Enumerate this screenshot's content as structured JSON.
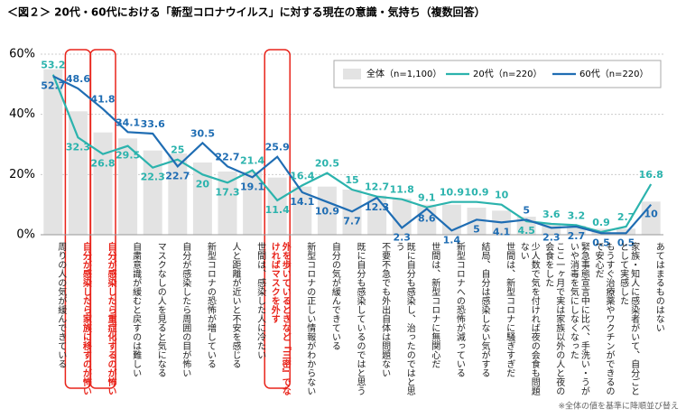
{
  "chart_data": {
    "type": "bar-line",
    "title": "＜図２＞ 20代・60代における「新型コロナウイルス」に対する現在の意識・気持ち（複数回答）",
    "note": "※全体の値を基準に降順並び替え",
    "categories": [
      "周りの人の気が緩んできている",
      "自分が感染したら家族に移すのが怖い",
      "自分が感染したら重症化するのが怖い",
      "自粛意識が緩むと戻すのは難しい",
      "マスクなしの人を見ると気になる",
      "自分が感染したら周囲の目が怖い",
      "新型コロナの恐怖が増している",
      "人と距離が近いと不安を感じる",
      "世間は、感染した人に冷たい",
      "外を歩いているときなど『三密』でなければマスクを外す",
      "新型コロナの正しい情報がわからない",
      "自分の気が緩んできている",
      "既に自分も感染しているのではと思う",
      "不要不急でも外出自体は問題ない",
      "既に自分も感染し、治ったのではと思う",
      "世間は、新型コロナに無関心だ",
      "新型コロナへの恐怖が減っている",
      "結局、自分は感染しない気がする",
      "世間は、新型コロナに騒ぎすぎだ",
      "少人数で気を付ければ夜の会食も問題ない",
      "ここ一ヶ月で実は家族以外の人と夜の会食をした",
      "緊急事態宣言中に比べ、手洗い・うがいや消毒を気にしなくなった",
      "もうすぐ治療薬やワクチンができるので安心だ",
      "家族・知人に感染者がいて、自分ごととして実感した",
      "あてはまるものはない"
    ],
    "highlight": [
      1,
      2,
      9
    ],
    "series": [
      {
        "name": "全体（n=1,100）",
        "kind": "bar",
        "color": "#e3e3e3",
        "values": [
          55,
          41,
          34,
          32,
          28,
          27,
          24,
          21,
          21,
          19,
          16,
          16,
          15,
          13,
          12,
          10,
          10,
          9,
          8,
          6,
          3.5,
          3,
          2,
          2,
          11
        ]
      },
      {
        "name": "20代（n=220）",
        "kind": "line",
        "color": "#2bb3ad",
        "values": [
          53.2,
          32.3,
          26.8,
          29.5,
          22.3,
          25.0,
          20.0,
          17.3,
          21.4,
          11.4,
          16.4,
          20.5,
          15.0,
          12.7,
          11.8,
          9.1,
          10.9,
          10.9,
          10.0,
          4.5,
          3.6,
          3.2,
          0.9,
          2.7,
          16.8
        ]
      },
      {
        "name": "60代（n=220）",
        "kind": "line",
        "color": "#1f6db3",
        "values": [
          52.7,
          48.6,
          41.8,
          34.1,
          33.6,
          22.7,
          30.5,
          22.7,
          19.1,
          25.9,
          14.1,
          10.9,
          7.7,
          12.3,
          2.3,
          8.6,
          1.4,
          5.0,
          4.1,
          5.0,
          2.3,
          2.7,
          0.5,
          0.5,
          10.0
        ]
      }
    ],
    "ylim": [
      0,
      60
    ],
    "yticks": [
      {
        "value": 0,
        "label": "0%"
      },
      {
        "value": 20,
        "label": "20%"
      },
      {
        "value": 40,
        "label": "40%"
      },
      {
        "value": 60,
        "label": "60%"
      }
    ],
    "grid": true
  }
}
